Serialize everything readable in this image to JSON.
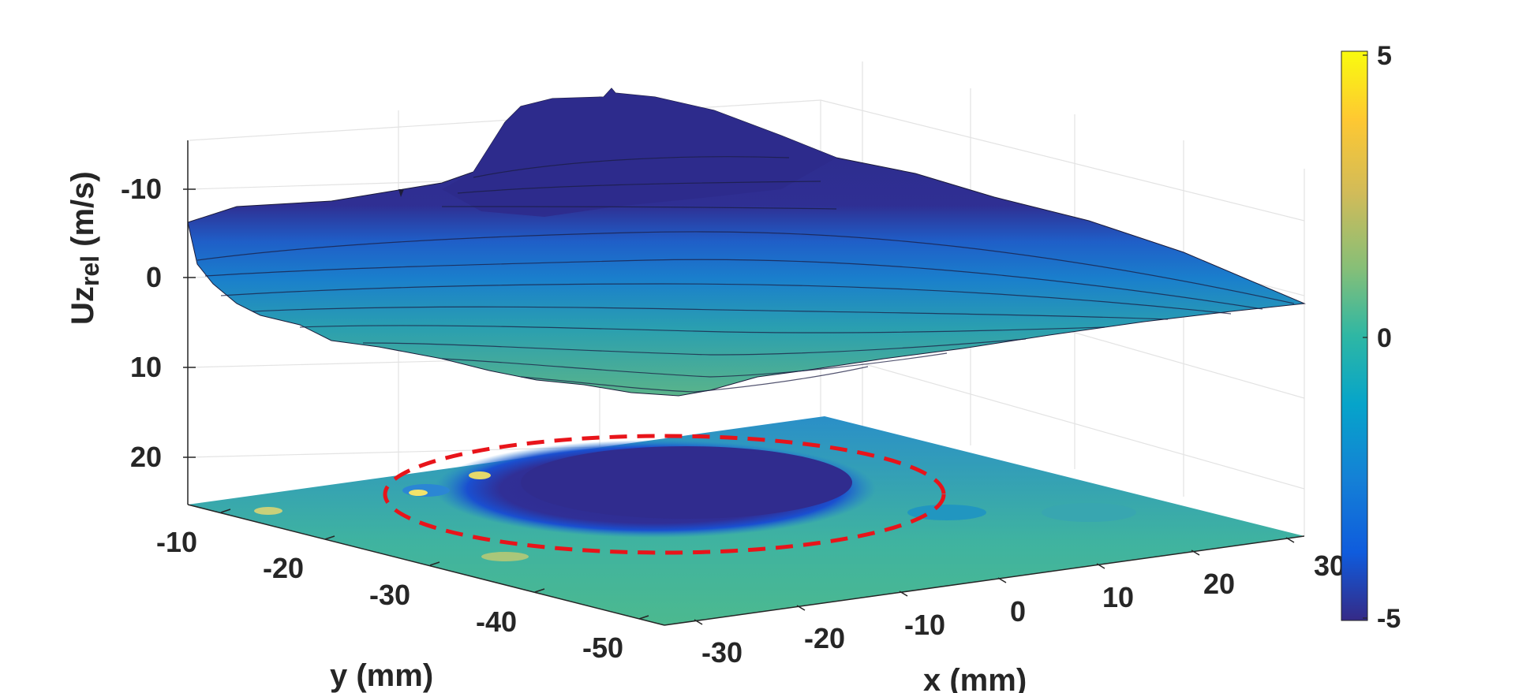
{
  "chart_data": {
    "type": "surface3d",
    "zlabel": "Uz",
    "zlabel_sub": "rel",
    "zlabel_unit": " (m/s)",
    "xlabel": "x (mm)",
    "ylabel": "y (mm)",
    "z_ticks": [
      "-10",
      "0",
      "10",
      "20"
    ],
    "z_range": [
      -15,
      25
    ],
    "z_axis_reversed": true,
    "x_ticks": [
      "-30",
      "-20",
      "-10",
      "0",
      "10",
      "20",
      "30"
    ],
    "x_range": [
      -35,
      30
    ],
    "y_ticks": [
      "-10",
      "-20",
      "-30",
      "-40",
      "-50"
    ],
    "y_range": [
      -55,
      -5
    ],
    "colorbar": {
      "min": -5,
      "max": 5,
      "ticks": [
        "5",
        "0",
        "-5"
      ],
      "colormap": "parula"
    },
    "annotation": {
      "type": "dashed-ellipse",
      "color": "#e8141a",
      "region": "low-velocity core"
    },
    "grid": true,
    "surface": "measured relative axial velocity Uz_rel over x–y plane, with filled contour projection below"
  }
}
